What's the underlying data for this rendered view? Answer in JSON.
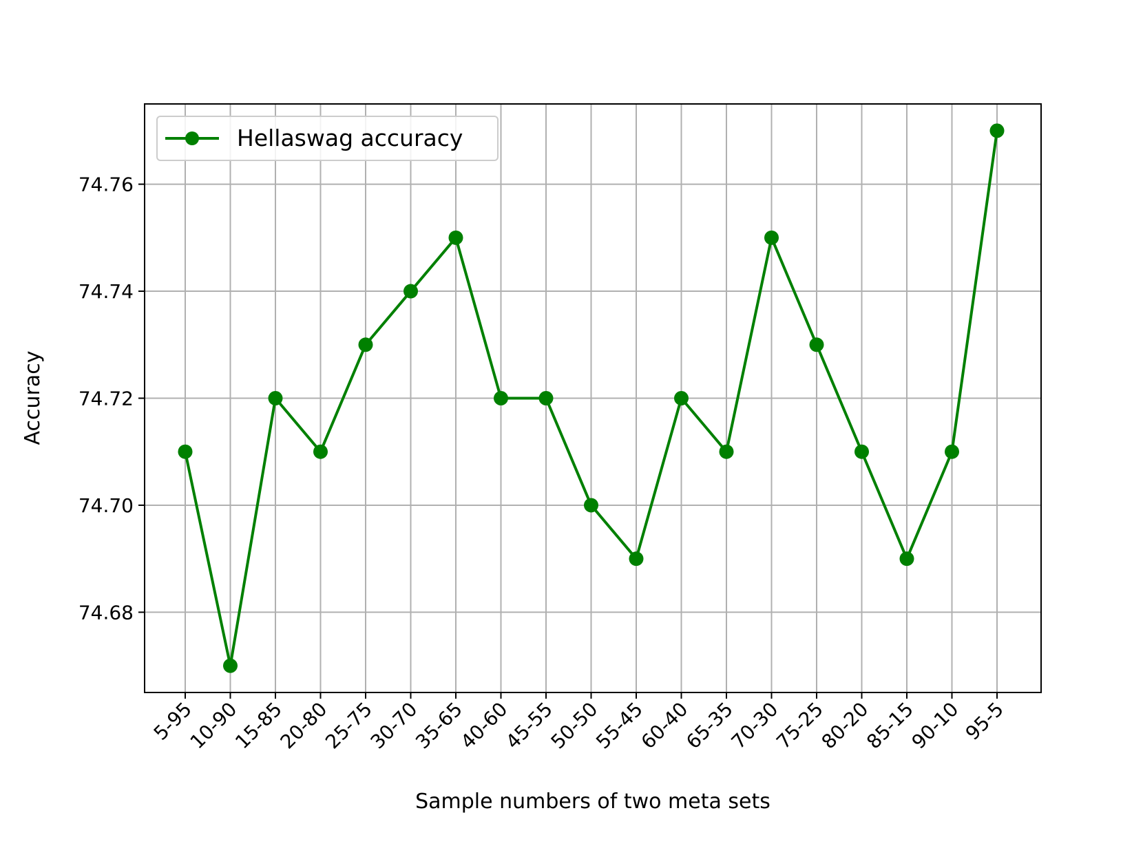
{
  "chart_data": {
    "type": "line",
    "categories": [
      "5-95",
      "10-90",
      "15-85",
      "20-80",
      "25-75",
      "30-70",
      "35-65",
      "40-60",
      "45-55",
      "50-50",
      "55-45",
      "60-40",
      "65-35",
      "70-30",
      "75-25",
      "80-20",
      "85-15",
      "90-10",
      "95-5"
    ],
    "series": [
      {
        "name": "Hellaswag accuracy",
        "values": [
          74.71,
          74.67,
          74.72,
          74.71,
          74.73,
          74.74,
          74.75,
          74.72,
          74.72,
          74.7,
          74.69,
          74.72,
          74.71,
          74.75,
          74.73,
          74.71,
          74.69,
          74.71,
          74.77
        ],
        "color": "#008000",
        "marker": "circle"
      }
    ],
    "xlabel": "Sample numbers of two meta sets",
    "ylabel": "Accuracy",
    "yticks": [
      "74.68",
      "74.70",
      "74.72",
      "74.74",
      "74.76"
    ],
    "ylim": [
      74.665,
      74.775
    ],
    "grid": true,
    "legend_position": "top-left",
    "grid_color": "#b0b0b0"
  }
}
